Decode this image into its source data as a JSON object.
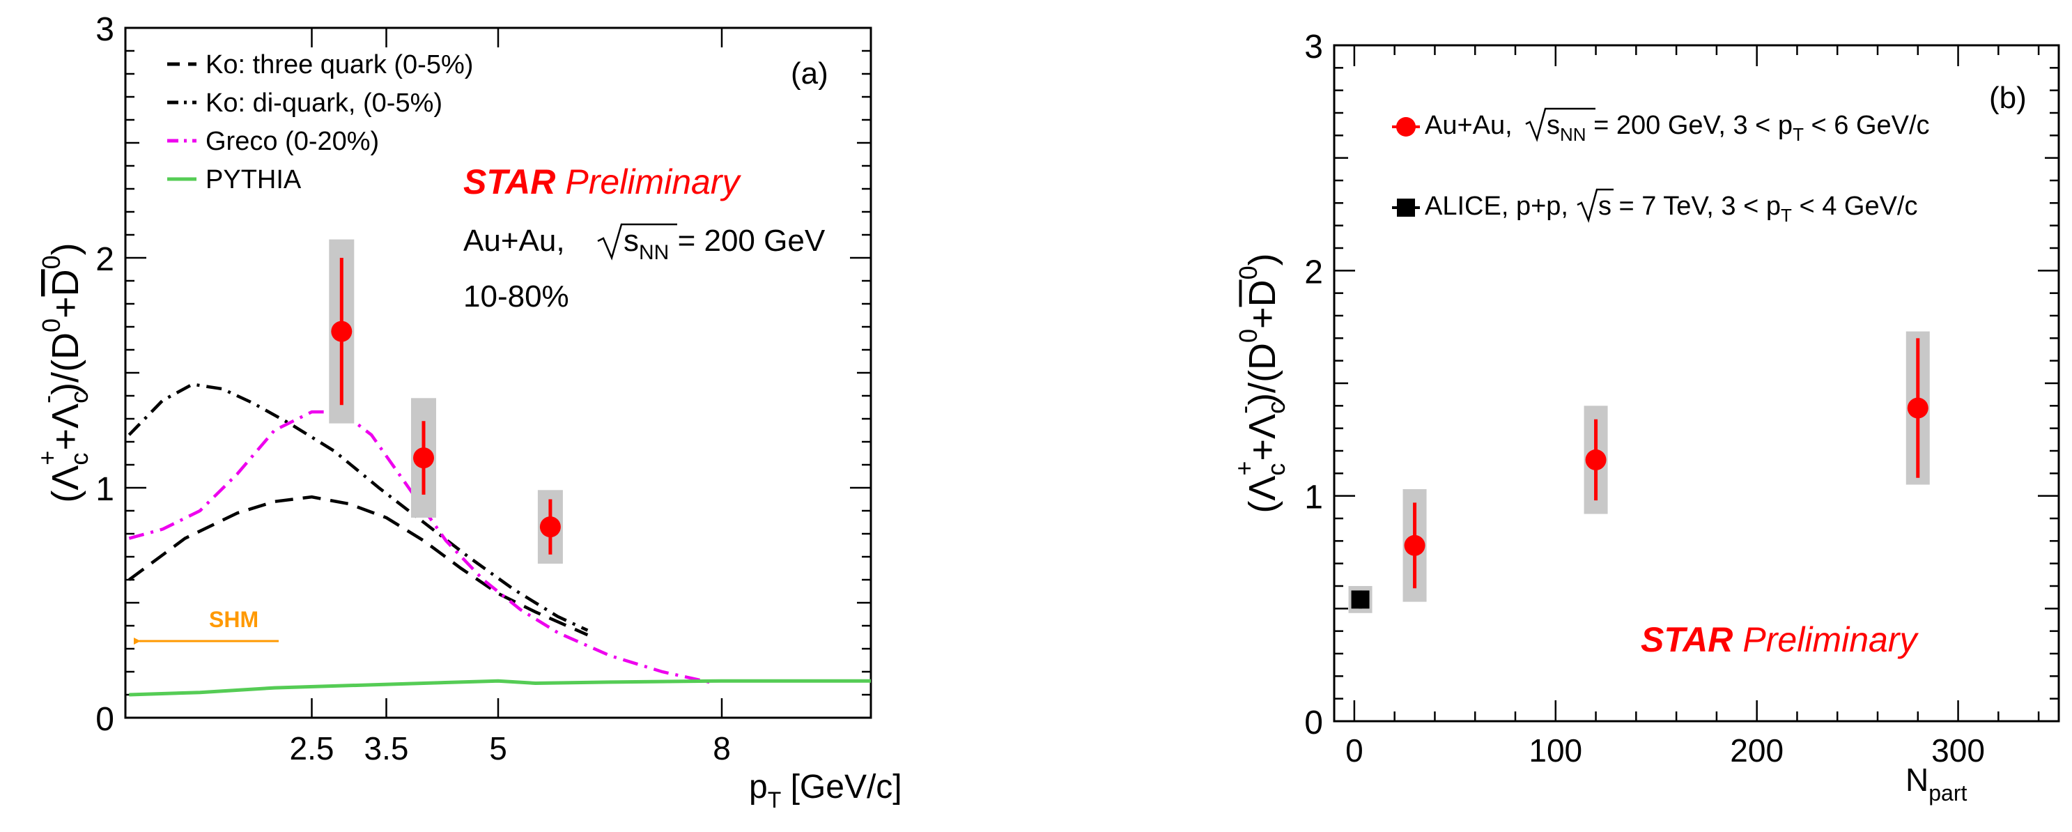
{
  "chart_data": [
    {
      "panel": "(a)",
      "type": "line",
      "title": "",
      "xlabel": "p",
      "xlabel_sub": "T",
      "xlabel_unit": " [GeV/c]",
      "ylabel": "(Λc⁺+Λc⁻)/(D⁰+D̄⁰)",
      "xlim": [
        0,
        10
      ],
      "ylim": [
        0,
        3
      ],
      "x_ticks": [
        {
          "label": "2.5",
          "x": 2.5
        },
        {
          "label": "3.5",
          "x": 3.5
        },
        {
          "label": "5",
          "x": 5
        },
        {
          "label": "8",
          "x": 8
        }
      ],
      "y_ticks": [
        "0",
        "1",
        "2",
        "3"
      ],
      "legend": [
        {
          "name": "Ko: three quark (0-5%)",
          "color": "#000000",
          "style": "dashed"
        },
        {
          "name": "Ko: di-quark, (0-5%)",
          "color": "#000000",
          "style": "dash-dot"
        },
        {
          "name": "Greco (0-20%)",
          "color": "#ee00ee",
          "style": "dash-dot"
        },
        {
          "name": "PYTHIA",
          "color": "#55cc55",
          "style": "solid"
        }
      ],
      "series": [
        {
          "name": "Ko: three quark (0-5%)",
          "x": [
            0.05,
            0.8,
            1.5,
            2.0,
            2.5,
            3.0,
            3.5,
            4.0,
            4.5,
            5.0,
            5.5,
            6.2
          ],
          "y": [
            0.6,
            0.78,
            0.89,
            0.94,
            0.96,
            0.93,
            0.87,
            0.77,
            0.65,
            0.54,
            0.46,
            0.36
          ]
        },
        {
          "name": "Ko: di-quark, (0-5%)",
          "x": [
            0.05,
            0.5,
            0.9,
            1.3,
            1.7,
            2.2,
            2.8,
            3.4,
            4.0,
            4.6,
            5.2,
            5.8,
            6.2
          ],
          "y": [
            1.23,
            1.38,
            1.45,
            1.43,
            1.37,
            1.28,
            1.16,
            1.0,
            0.85,
            0.7,
            0.56,
            0.44,
            0.38
          ]
        },
        {
          "name": "Greco (0-20%)",
          "x": [
            0.05,
            0.5,
            1.0,
            1.5,
            2.0,
            2.5,
            2.9,
            3.3,
            3.8,
            4.3,
            4.8,
            5.3,
            5.8,
            6.5,
            7.2,
            7.9
          ],
          "y": [
            0.78,
            0.82,
            0.9,
            1.06,
            1.25,
            1.33,
            1.33,
            1.23,
            1.0,
            0.77,
            0.6,
            0.47,
            0.37,
            0.27,
            0.2,
            0.15
          ]
        },
        {
          "name": "PYTHIA",
          "x": [
            0.05,
            1.0,
            2.0,
            3.0,
            4.0,
            5.0,
            5.5,
            6.5,
            8.0,
            10.0
          ],
          "y": [
            0.1,
            0.11,
            0.13,
            0.14,
            0.15,
            0.16,
            0.15,
            0.155,
            0.16,
            0.16
          ]
        }
      ],
      "data_points": [
        {
          "x": 2.9,
          "y": 1.68,
          "stat_err": 0.32,
          "sys_err": 0.4
        },
        {
          "x": 4.0,
          "y": 1.13,
          "stat_err": 0.16,
          "sys_err": 0.26
        },
        {
          "x": 5.7,
          "y": 0.83,
          "stat_err": 0.12,
          "sys_err": 0.16
        }
      ],
      "annotations": {
        "panel_label": "(a)",
        "star_bold": "STAR",
        "star_italic": "Preliminary",
        "system": "Au+Au,",
        "energy_s": "s",
        "energy_sub": "NN",
        "energy_value": " = 200 GeV",
        "centrality": "10-80%",
        "shm": "SHM"
      },
      "colors": {
        "data": "#ff0000",
        "sys_box": "#c8c8c8",
        "shm": "#ff9900"
      }
    },
    {
      "panel": "(b)",
      "type": "scatter",
      "xlabel": "N",
      "xlabel_sub": "part",
      "ylabel": "(Λc⁺+Λc⁻)/(D⁰+D̄⁰)",
      "xlim": [
        -10,
        350
      ],
      "ylim": [
        0,
        3
      ],
      "x_ticks": [
        "0",
        "100",
        "200",
        "300"
      ],
      "y_ticks": [
        "0",
        "1",
        "2",
        "3"
      ],
      "series": [
        {
          "name": "Au+Au",
          "points": [
            {
              "x": 30,
              "y": 0.78,
              "stat_err": 0.19,
              "sys_err": 0.25
            },
            {
              "x": 120,
              "y": 1.16,
              "stat_err": 0.18,
              "sys_err": 0.24
            },
            {
              "x": 280,
              "y": 1.39,
              "stat_err": 0.31,
              "sys_err": 0.34
            }
          ]
        },
        {
          "name": "ALICE, p+p",
          "points": [
            {
              "x": 3,
              "y": 0.54,
              "stat_err": 0.04,
              "sys_err": 0.06
            }
          ]
        }
      ],
      "legend": [
        {
          "prefix": "Au+Au, ",
          "sqrt_arg": "s",
          "sqrt_sub": "NN",
          "mid": " = 200 GeV, 3 < p",
          "pt_sub": "T",
          "suffix": " < 6 GeV/c",
          "color": "#ff0000",
          "marker": "circle"
        },
        {
          "prefix": "ALICE, p+p, ",
          "sqrt_arg": "s",
          "sqrt_sub": "",
          "mid": " = 7 TeV, 3 < p",
          "pt_sub": "T",
          "suffix": " < 4 GeV/c",
          "color": "#000000",
          "marker": "square"
        }
      ],
      "annotations": {
        "panel_label": "(b)",
        "star_bold": "STAR",
        "star_italic": "Preliminary"
      }
    }
  ]
}
